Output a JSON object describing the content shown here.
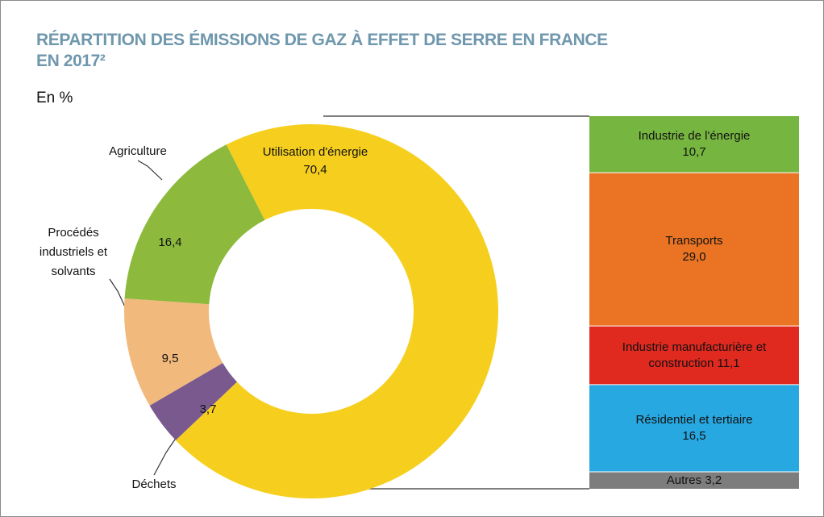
{
  "chart_data": [
    {
      "type": "pie",
      "title": "RÉPARTITION DES ÉMISSIONS DE GAZ À EFFET DE SERRE EN FRANCE EN 2017²",
      "subtitle": "En %",
      "categories": [
        "Utilisation d'énergie",
        "Déchets",
        "Procédés industriels et solvants",
        "Agriculture"
      ],
      "values": [
        70.4,
        3.7,
        9.5,
        16.4
      ],
      "value_labels": [
        "70,4",
        "3,7",
        "9,5",
        "16,4"
      ],
      "colors": [
        "#f6cf1e",
        "#7a5a8e",
        "#f2b97c",
        "#8dba3c"
      ],
      "donut": true
    },
    {
      "type": "bar",
      "stacked": true,
      "series": [
        {
          "name": "Industrie de l'énergie",
          "color": "#76b640",
          "values": [
            10.7
          ],
          "value_labels": [
            "10,7"
          ]
        },
        {
          "name": "Transports",
          "color": "#ea7423",
          "values": [
            29.0
          ],
          "value_labels": [
            "29,0"
          ]
        },
        {
          "name": "Industrie manufacturière et construction",
          "color": "#e0291f",
          "values": [
            11.1
          ],
          "value_labels": [
            "11,1"
          ]
        },
        {
          "name": "Résidentiel et tertiaire",
          "color": "#28a8e0",
          "values": [
            16.5
          ],
          "value_labels": [
            "16,5"
          ]
        },
        {
          "name": "Autres",
          "color": "#7d7d7d",
          "values": [
            3.2
          ],
          "value_labels": [
            "3,2"
          ]
        }
      ]
    }
  ]
}
